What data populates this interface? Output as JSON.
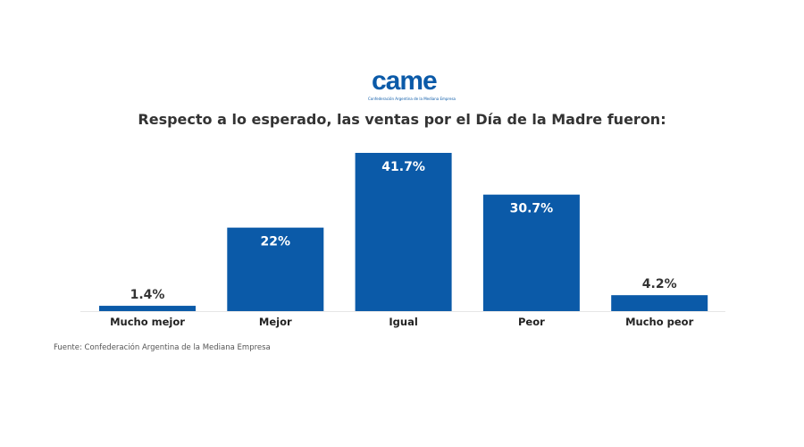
{
  "logo": {
    "text": "came",
    "subtitle": "Confederación Argentina de la Mediana Empresa"
  },
  "chart_data": {
    "type": "bar",
    "title": "Respecto a lo esperado, las ventas por el Día de la Madre fueron:",
    "categories": [
      "Mucho mejor",
      "Mejor",
      "Igual",
      "Peor",
      "Mucho peor"
    ],
    "values": [
      1.4,
      22,
      41.7,
      30.7,
      4.2
    ],
    "value_labels": [
      "1.4%",
      "22%",
      "41.7%",
      "30.7%",
      "4.2%"
    ],
    "xlabel": "",
    "ylabel": "",
    "ylim": [
      0,
      45
    ],
    "grid": false,
    "bar_color": "#0b5aa8"
  },
  "source": "Fuente: Confederación Argentina de la Mediana Empresa"
}
